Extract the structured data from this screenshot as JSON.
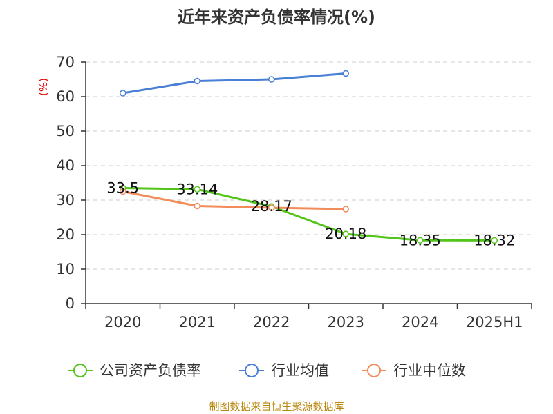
{
  "chart_data": {
    "type": "line",
    "title": "近年来资产负债率情况(%)",
    "ylabel": "(%)",
    "xlabel": "",
    "categories": [
      "2020",
      "2021",
      "2022",
      "2023",
      "2024",
      "2025H1"
    ],
    "ylim": [
      0,
      70
    ],
    "yticks": [
      0,
      10,
      20,
      30,
      40,
      50,
      60,
      70
    ],
    "grid": true,
    "legend_position": "bottom",
    "series": [
      {
        "name": "公司资产负债率",
        "color": "#52c41a",
        "values": [
          33.5,
          33.14,
          28.17,
          20.18,
          18.35,
          18.32
        ],
        "labels": [
          "33.5",
          "33.14",
          "28.17",
          "20.18",
          "18.35",
          "18.32"
        ]
      },
      {
        "name": "行业均值",
        "color": "#4a7fd6",
        "values": [
          61,
          64.5,
          65,
          66.7,
          null,
          null
        ]
      },
      {
        "name": "行业中位数",
        "color": "#f28c5a",
        "values": [
          32.5,
          28.3,
          27.8,
          27.4,
          null,
          null
        ]
      }
    ]
  },
  "source": "制图数据来自恒生聚源数据库"
}
